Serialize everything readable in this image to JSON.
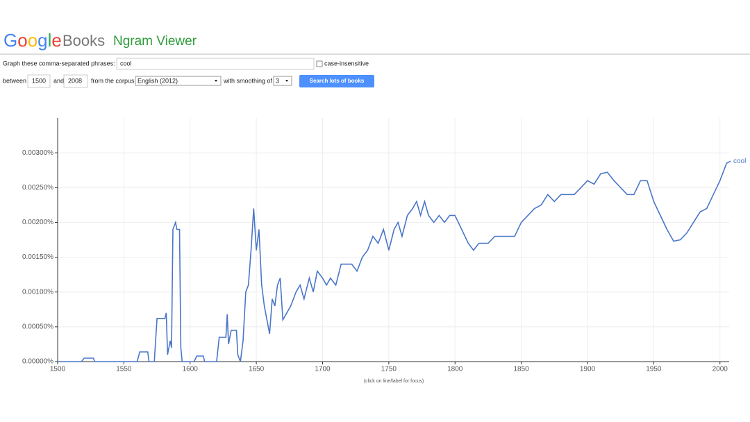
{
  "header": {
    "logo": "Google",
    "books": "Books",
    "product": "Ngram Viewer"
  },
  "form": {
    "phrases_label": "Graph these comma-separated phrases:",
    "phrases": "cool",
    "case_label": "case-insensitive",
    "between": "between",
    "start": "1500",
    "and": "and",
    "end": "2008",
    "corpus_label": "from the corpus",
    "corpus": "English (2012)",
    "smoothing_label": "with smoothing of",
    "smoothing": "3",
    "button": "Search lots of books"
  },
  "chart_data": {
    "type": "line",
    "note": "(click on line/label for focus)",
    "x": [
      1500,
      1518,
      1520,
      1527,
      1528,
      1560,
      1562,
      1568,
      1569,
      1573,
      1575,
      1581,
      1582,
      1583,
      1585,
      1586,
      1587,
      1589,
      1590,
      1592,
      1593,
      1594,
      1603,
      1605,
      1610,
      1611,
      1620,
      1622,
      1627,
      1628,
      1629,
      1631,
      1635,
      1636,
      1638,
      1640,
      1642,
      1644,
      1646,
      1648,
      1650,
      1652,
      1654,
      1656,
      1658,
      1660,
      1662,
      1664,
      1666,
      1668,
      1670,
      1673,
      1676,
      1680,
      1683,
      1686,
      1690,
      1693,
      1696,
      1700,
      1703,
      1706,
      1710,
      1714,
      1718,
      1722,
      1726,
      1730,
      1734,
      1738,
      1742,
      1746,
      1750,
      1754,
      1757,
      1760,
      1764,
      1768,
      1771,
      1774,
      1777,
      1780,
      1784,
      1788,
      1792,
      1796,
      1800,
      1805,
      1810,
      1814,
      1818,
      1825,
      1830,
      1838,
      1845,
      1850,
      1855,
      1860,
      1865,
      1870,
      1875,
      1880,
      1890,
      1895,
      1900,
      1905,
      1910,
      1915,
      1920,
      1925,
      1930,
      1935,
      1940,
      1945,
      1950,
      1955,
      1960,
      1965,
      1970,
      1975,
      1980,
      1985,
      1990,
      1995,
      2000,
      2005,
      2008
    ],
    "series": [
      {
        "name": "cool",
        "color": "#4a76c8",
        "values": [
          0,
          0,
          5e-05,
          5e-05,
          0,
          0,
          0.00014,
          0.00014,
          0,
          0,
          0.00062,
          0.00062,
          0.0007,
          0.0001,
          0.0003,
          0.0002,
          0.0019,
          0.002,
          0.0019,
          0.0019,
          0.0002,
          0,
          0,
          8e-05,
          8e-05,
          0,
          0,
          0.00035,
          0.00035,
          0.00068,
          0.00025,
          0.00045,
          0.00045,
          0.0001,
          0,
          0.0003,
          0.001,
          0.0011,
          0.0016,
          0.0022,
          0.0016,
          0.0019,
          0.0011,
          0.0008,
          0.0006,
          0.0004,
          0.0009,
          0.0008,
          0.0011,
          0.0012,
          0.0006,
          0.0007,
          0.0008,
          0.001,
          0.0011,
          0.0009,
          0.0012,
          0.001,
          0.0013,
          0.0012,
          0.0011,
          0.0012,
          0.0011,
          0.0014,
          0.0014,
          0.0014,
          0.0013,
          0.0015,
          0.0016,
          0.0018,
          0.0017,
          0.0019,
          0.0016,
          0.0019,
          0.002,
          0.0018,
          0.0021,
          0.0022,
          0.0023,
          0.0021,
          0.0023,
          0.0021,
          0.002,
          0.0021,
          0.002,
          0.0021,
          0.0021,
          0.0019,
          0.0017,
          0.0016,
          0.0017,
          0.0017,
          0.0018,
          0.0018,
          0.0018,
          0.002,
          0.0021,
          0.0022,
          0.00225,
          0.0024,
          0.0023,
          0.0024,
          0.0024,
          0.0025,
          0.0026,
          0.00255,
          0.0027,
          0.00272,
          0.0026,
          0.0025,
          0.0024,
          0.0024,
          0.0026,
          0.0026,
          0.0023,
          0.0021,
          0.0019,
          0.00173,
          0.00175,
          0.00185,
          0.002,
          0.00215,
          0.0022,
          0.0024,
          0.0026,
          0.00285,
          0.00288
        ]
      }
    ],
    "xlim": [
      1500,
      2008
    ],
    "xticks": [
      1500,
      1550,
      1600,
      1650,
      1700,
      1750,
      1800,
      1850,
      1900,
      1950,
      2000
    ],
    "ylim": [
      0,
      0.0035
    ],
    "yticks": [
      {
        "value": 0,
        "label": "0.00000%"
      },
      {
        "value": 0.0005,
        "label": "0.00050%"
      },
      {
        "value": 0.001,
        "label": "0.00100%"
      },
      {
        "value": 0.0015,
        "label": "0.00150%"
      },
      {
        "value": 0.002,
        "label": "0.00200%"
      },
      {
        "value": 0.0025,
        "label": "0.00250%"
      },
      {
        "value": 0.003,
        "label": "0.00300%"
      }
    ],
    "grid": true
  }
}
